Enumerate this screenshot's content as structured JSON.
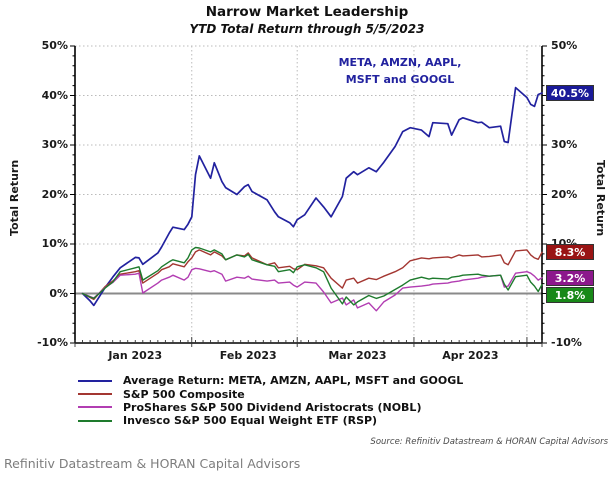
{
  "header": {
    "title": "Narrow Market Leadership",
    "subtitle": "YTD Total Return through 5/5/2023"
  },
  "annotation": {
    "line1": "META, AMZN, AAPL,",
    "line2": "MSFT and GOOGL",
    "color": "#22229F"
  },
  "axes": {
    "left_label": "Total Return",
    "right_label": "Total Return",
    "ylim": [
      -10,
      50
    ],
    "total_days": 124,
    "y_ticks": [
      {
        "value": 50,
        "label": "50%"
      },
      {
        "value": 40,
        "label": "40%"
      },
      {
        "value": 30,
        "label": "30%"
      },
      {
        "value": 20,
        "label": "20%"
      },
      {
        "value": 10,
        "label": "10%"
      },
      {
        "value": 0,
        "label": "0%"
      },
      {
        "value": -10,
        "label": "-10%"
      }
    ],
    "x_ticks": [
      {
        "label": "Jan 2023",
        "mid_day": 16
      },
      {
        "label": "Feb 2023",
        "mid_day": 46
      },
      {
        "label": "Mar 2023",
        "mid_day": 75
      },
      {
        "label": "Apr 2023",
        "mid_day": 105
      }
    ],
    "month_start_days": [
      31,
      59,
      90,
      120
    ]
  },
  "chart_data": {
    "type": "line",
    "title": "Narrow Market Leadership",
    "subtitle": "YTD Total Return through 5/5/2023",
    "ylabel": "Total Return",
    "ylim": [
      -10,
      50
    ],
    "grid": "dotted",
    "legend_position": "bottom-left",
    "x_dates": [
      "01-03",
      "01-05",
      "01-06",
      "01-09",
      "01-11",
      "01-13",
      "01-17",
      "01-18",
      "01-19",
      "01-23",
      "01-24",
      "01-26",
      "01-27",
      "01-30",
      "01-31",
      "02-01",
      "02-02",
      "02-03",
      "02-06",
      "02-07",
      "02-09",
      "02-10",
      "02-13",
      "02-15",
      "02-16",
      "02-17",
      "02-21",
      "02-23",
      "02-24",
      "02-27",
      "02-28",
      "03-01",
      "03-03",
      "03-06",
      "03-08",
      "03-10",
      "03-13",
      "03-14",
      "03-16",
      "03-17",
      "03-20",
      "03-22",
      "03-24",
      "03-27",
      "03-29",
      "03-31",
      "04-03",
      "04-05",
      "04-06",
      "04-10",
      "04-11",
      "04-13",
      "04-14",
      "04-18",
      "04-19",
      "04-21",
      "04-24",
      "04-25",
      "04-26",
      "04-28",
      "05-01",
      "05-02",
      "05-03",
      "05-04",
      "05-05"
    ],
    "series": [
      {
        "name": "Average Return: META, AMZN, AAPL, MSFT and GOOGL",
        "color": "#22229F",
        "box_color": "#1A1A99",
        "end_label": "40.5%",
        "line_width": 1.7,
        "values": [
          0,
          -1.5,
          -2.4,
          1.2,
          3.3,
          5.2,
          7.3,
          7.2,
          5.9,
          8.2,
          9.4,
          12.2,
          13.4,
          12.9,
          14.0,
          15.5,
          24.0,
          27.8,
          23.3,
          26.4,
          22.6,
          21.4,
          20.0,
          21.6,
          22.0,
          20.6,
          18.9,
          16.5,
          15.5,
          14.3,
          13.5,
          14.9,
          15.9,
          19.3,
          17.5,
          15.5,
          19.6,
          23.3,
          24.6,
          24.0,
          25.4,
          24.6,
          26.5,
          29.7,
          32.7,
          33.5,
          33.0,
          31.7,
          34.5,
          34.3,
          32.0,
          35.1,
          35.5,
          34.5,
          34.6,
          33.5,
          33.8,
          30.7,
          30.5,
          41.6,
          39.6,
          38.2,
          37.8,
          40.2,
          40.5
        ]
      },
      {
        "name": "S&P 500 Composite",
        "color": "#A33631",
        "box_color": "#991414",
        "end_label": "8.3%",
        "line_width": 1.4,
        "values": [
          0,
          -0.8,
          -1.2,
          1.4,
          2.5,
          3.9,
          4.4,
          4.6,
          2.1,
          4.1,
          4.8,
          5.4,
          6.0,
          5.4,
          6.4,
          7.2,
          8.4,
          8.8,
          7.8,
          8.4,
          7.6,
          6.8,
          7.8,
          7.6,
          8.2,
          7.2,
          5.8,
          6.2,
          5.2,
          5.5,
          5.0,
          4.8,
          5.9,
          5.6,
          5.2,
          3.1,
          1.1,
          2.7,
          3.1,
          2.1,
          3.1,
          2.8,
          3.5,
          4.4,
          5.2,
          6.6,
          7.2,
          7.0,
          7.2,
          7.4,
          7.2,
          7.8,
          7.6,
          7.8,
          7.4,
          7.5,
          7.8,
          6.2,
          5.8,
          8.6,
          8.8,
          7.8,
          7.2,
          6.9,
          8.3
        ]
      },
      {
        "name": "ProShares S&P 500 Dividend Aristocrats (NOBL)",
        "color": "#B23DB2",
        "box_color": "#8C188C",
        "end_label": "3.2%",
        "line_width": 1.4,
        "values": [
          0,
          -0.6,
          -0.9,
          1.2,
          2.2,
          3.7,
          3.9,
          4.1,
          0.1,
          2.1,
          2.7,
          3.3,
          3.7,
          2.7,
          3.3,
          4.8,
          5.1,
          5.0,
          4.4,
          4.6,
          3.9,
          2.5,
          3.3,
          3.1,
          3.5,
          2.9,
          2.5,
          2.7,
          2.1,
          2.3,
          1.7,
          1.3,
          2.3,
          2.1,
          0.3,
          -1.9,
          -0.9,
          -2.3,
          -1.3,
          -2.9,
          -1.9,
          -3.5,
          -1.7,
          -0.3,
          1.1,
          1.3,
          1.5,
          1.7,
          1.9,
          2.1,
          2.3,
          2.5,
          2.7,
          3.1,
          3.3,
          3.5,
          3.7,
          1.3,
          1.5,
          4.1,
          4.4,
          4.1,
          3.5,
          2.7,
          3.2
        ]
      },
      {
        "name": "Invesco S&P 500 Equal Weight ETF (RSP)",
        "color": "#1E7B2D",
        "box_color": "#188818",
        "end_label": "1.8%",
        "line_width": 1.4,
        "values": [
          0,
          -0.7,
          -1.0,
          1.1,
          2.3,
          4.4,
          5.2,
          5.4,
          2.7,
          4.6,
          5.4,
          6.4,
          6.8,
          6.2,
          7.2,
          8.8,
          9.3,
          9.2,
          8.4,
          8.8,
          8.0,
          6.8,
          7.8,
          7.4,
          7.9,
          6.8,
          5.8,
          5.5,
          4.4,
          4.8,
          4.2,
          5.4,
          5.8,
          5.2,
          4.4,
          1.1,
          -2.1,
          -0.7,
          -2.3,
          -1.7,
          -0.4,
          -1.0,
          -0.5,
          0.8,
          1.7,
          2.7,
          3.3,
          2.9,
          3.1,
          2.9,
          3.3,
          3.5,
          3.7,
          3.9,
          3.7,
          3.5,
          3.7,
          1.9,
          0.7,
          3.4,
          3.7,
          2.3,
          1.5,
          0.4,
          1.8
        ]
      }
    ]
  },
  "source_note": "Source: Refinitiv Datastream & HORAN Capital Advisors",
  "footer": "Refinitiv Datastream & HORAN Capital Advisors",
  "colors": {
    "grid": "#bbbbbb",
    "zero_line": "#8a8a8a",
    "axis": "#000000"
  }
}
